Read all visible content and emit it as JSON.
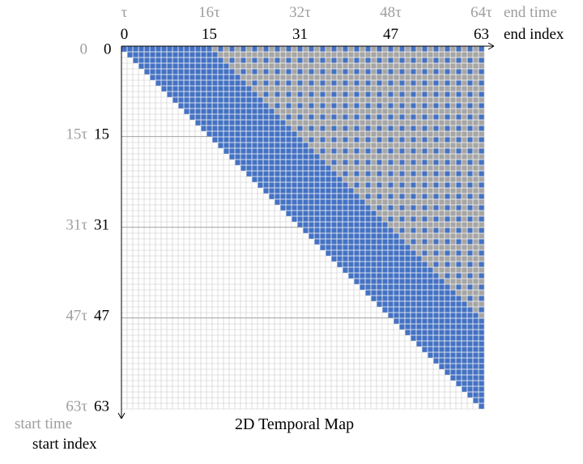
{
  "diagram": {
    "title": "2D Temporal Map",
    "grid_size": 64,
    "colors": {
      "valid": "#4472c4",
      "sparse": "#a6a6a6",
      "empty": "#ffffff",
      "gridline_light": "#c8c8c8",
      "gridline_dark": "#9a9a9a",
      "time_text": "#9e9e9e",
      "index_text": "#000000"
    },
    "dense_band_width": 16,
    "sparse_stride": 2,
    "top_axis": {
      "time_label": "end time",
      "index_label": "end index",
      "time_ticks": [
        {
          "index": 0,
          "label": "τ"
        },
        {
          "index": 15,
          "label": "16τ"
        },
        {
          "index": 31,
          "label": "32τ"
        },
        {
          "index": 47,
          "label": "48τ"
        },
        {
          "index": 63,
          "label": "64τ"
        }
      ],
      "index_ticks": [
        {
          "index": 0,
          "label": "0"
        },
        {
          "index": 15,
          "label": "15"
        },
        {
          "index": 31,
          "label": "31"
        },
        {
          "index": 47,
          "label": "47"
        },
        {
          "index": 63,
          "label": "63"
        }
      ]
    },
    "left_axis": {
      "time_label": "start time",
      "index_label": "start index",
      "time_ticks": [
        {
          "index": 0,
          "label": "0"
        },
        {
          "index": 15,
          "label": "15τ"
        },
        {
          "index": 31,
          "label": "31τ"
        },
        {
          "index": 47,
          "label": "47τ"
        },
        {
          "index": 63,
          "label": "63τ"
        }
      ],
      "index_ticks": [
        {
          "index": 0,
          "label": "0"
        },
        {
          "index": 15,
          "label": "15"
        },
        {
          "index": 31,
          "label": "31"
        },
        {
          "index": 47,
          "label": "47"
        },
        {
          "index": 63,
          "label": "63"
        }
      ]
    }
  }
}
